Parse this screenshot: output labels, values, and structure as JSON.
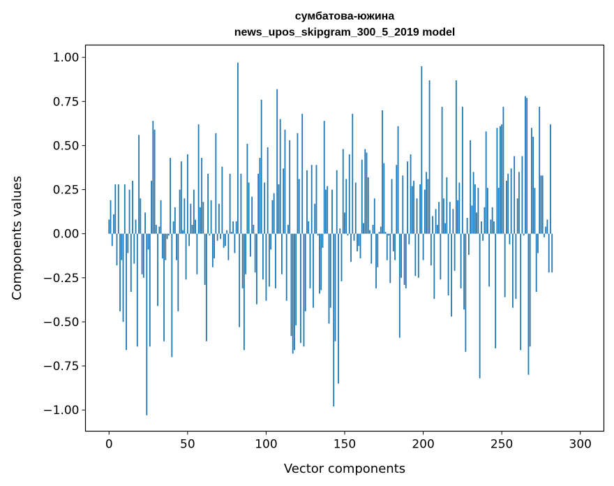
{
  "chart_data": {
    "type": "bar",
    "title_line1": "сумбатова-южина",
    "title_line2": "news_upos_skipgram_300_5_2019 model",
    "xlabel": "Vector components",
    "ylabel": "Components values",
    "xlim": [
      -15,
      315
    ],
    "ylim": [
      -1.12,
      1.07
    ],
    "xticks": [
      0,
      50,
      100,
      150,
      200,
      250,
      300
    ],
    "yticks": [
      1.0,
      0.75,
      0.5,
      0.25,
      0.0,
      -0.25,
      -0.5,
      -0.75,
      -1.0
    ],
    "ytick_labels": [
      "1.00",
      "0.75",
      "0.50",
      "0.25",
      "0.00",
      "−0.25",
      "−0.50",
      "−0.75",
      "−1.00"
    ],
    "bar_color": "#1f77b4",
    "grid": false,
    "values": [
      0.08,
      0.19,
      -0.07,
      0.11,
      0.28,
      -0.18,
      0.28,
      -0.44,
      -0.15,
      -0.5,
      0.28,
      -0.66,
      -0.11,
      0.25,
      -0.33,
      0.3,
      -0.17,
      0.08,
      -0.64,
      0.56,
      0.2,
      -0.23,
      -0.25,
      0.12,
      -1.03,
      -0.09,
      -0.64,
      0.3,
      0.64,
      0.59,
      0.05,
      -0.41,
      0.04,
      0.19,
      -0.14,
      -0.61,
      -0.15,
      -0.03,
      -0.01,
      0.43,
      -0.7,
      0.07,
      0.15,
      -0.15,
      -0.44,
      0.25,
      0.41,
      0.02,
      0.2,
      -0.26,
      0.45,
      -0.07,
      0.17,
      0.05,
      0.25,
      0.08,
      -0.23,
      0.62,
      0.15,
      0.43,
      0.18,
      -0.29,
      -0.61,
      0.34,
      -0.01,
      0.19,
      -0.19,
      -0.14,
      0.57,
      -0.04,
      0.17,
      -0.03,
      0.38,
      -0.08,
      -0.07,
      0.02,
      -0.15,
      0.34,
      0.01,
      0.07,
      -0.11,
      0.07,
      0.97,
      -0.53,
      0.34,
      -0.31,
      -0.66,
      -0.23,
      0.51,
      0.29,
      -0.13,
      0.21,
      0.05,
      -0.22,
      -0.4,
      0.34,
      0.43,
      0.76,
      -0.26,
      0.29,
      -0.38,
      0.49,
      -0.3,
      -0.09,
      0.19,
      0.23,
      -0.31,
      0.82,
      0.28,
      0.65,
      -0.23,
      0.37,
      0.59,
      -0.38,
      0.05,
      0.53,
      -0.58,
      -0.68,
      -0.66,
      -0.52,
      0.57,
      0.31,
      -0.62,
      0.68,
      -0.64,
      -0.44,
      0.36,
      0.07,
      -0.31,
      0.39,
      -0.42,
      0.17,
      0.39,
      -0.01,
      -0.34,
      -0.32,
      -0.08,
      0.64,
      0.25,
      0.27,
      -0.51,
      -0.42,
      0.25,
      -0.98,
      -0.61,
      0.36,
      -0.85,
      0.03,
      -0.27,
      0.48,
      0.12,
      0.31,
      -0.01,
      0.45,
      -0.16,
      0.68,
      -0.04,
      0.29,
      -0.1,
      -0.07,
      -0.14,
      0.42,
      0.06,
      0.48,
      0.46,
      0.32,
      0.02,
      -0.17,
      0.05,
      0.2,
      -0.31,
      -0.19,
      0.01,
      0.04,
      0.7,
      0.4,
      0.01,
      -0.15,
      -0.01,
      -0.28,
      0.31,
      -0.1,
      -0.15,
      0.39,
      0.61,
      -0.59,
      -0.25,
      0.33,
      -0.29,
      -0.31,
      0.41,
      -0.06,
      0.45,
      0.27,
      0.3,
      -0.24,
      0.2,
      -0.25,
      0.28,
      0.95,
      -0.15,
      0.25,
      0.35,
      0.31,
      0.87,
      -0.18,
      0.1,
      -0.37,
      0.14,
      0.05,
      0.18,
      -0.26,
      0.72,
      0.2,
      0.06,
      0.32,
      -0.35,
      0.18,
      -0.47,
      0.14,
      -0.21,
      0.87,
      0.19,
      0.29,
      -0.31,
      0.72,
      -0.43,
      -0.67,
      0.09,
      -0.12,
      0.53,
      0.16,
      0.35,
      0.28,
      0.12,
      0.26,
      -0.82,
      0.07,
      -0.04,
      0.15,
      0.58,
      0.26,
      -0.3,
      0.08,
      0.15,
      0.07,
      -0.65,
      0.6,
      0.26,
      0.61,
      0.62,
      0.72,
      -0.36,
      0.3,
      0.34,
      -0.06,
      0.37,
      -0.42,
      0.44,
      -0.37,
      0.2,
      0.35,
      -0.66,
      0.44,
      -0.01,
      0.78,
      0.77,
      -0.8,
      -0.64,
      0.6,
      0.55,
      0.26,
      -0.33,
      -0.11,
      0.72,
      0.33,
      0.33,
      -0.02,
      0.04,
      0.08,
      -0.22,
      0.62,
      -0.22
    ]
  }
}
